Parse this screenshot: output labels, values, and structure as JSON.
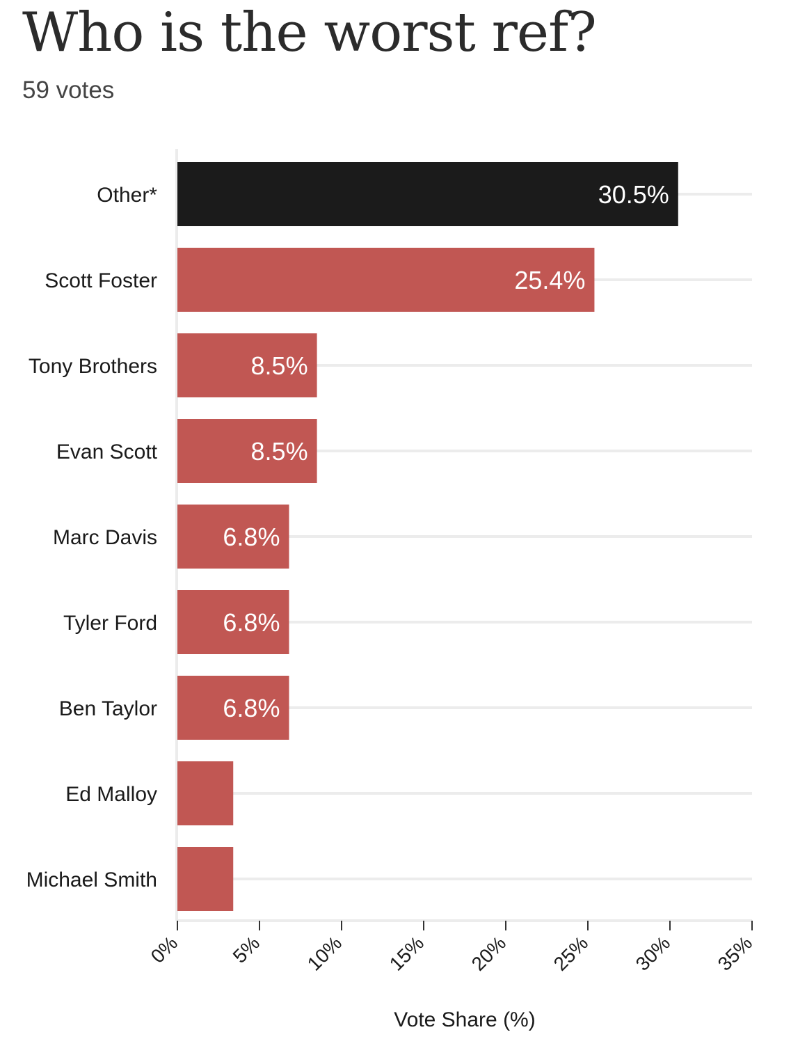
{
  "header": {
    "title": "Who is the worst ref?",
    "subtitle": "59 votes"
  },
  "colors": {
    "highlight": "#1b1b1b",
    "bar": "#c15753",
    "grid": "#ececec",
    "text": "#1a1a1a",
    "label_on_bar": "#ffffff"
  },
  "chart_data": {
    "type": "bar",
    "orientation": "horizontal",
    "title": "Who is the worst ref?",
    "subtitle": "59 votes",
    "categories": [
      "Other*",
      "Scott Foster",
      "Tony Brothers",
      "Evan Scott",
      "Marc Davis",
      "Tyler Ford",
      "Ben Taylor",
      "Ed Malloy",
      "Michael Smith"
    ],
    "values": [
      30.5,
      25.4,
      8.5,
      8.5,
      6.8,
      6.8,
      6.8,
      3.4,
      3.4
    ],
    "data_labels": [
      "30.5%",
      "25.4%",
      "8.5%",
      "8.5%",
      "6.8%",
      "6.8%",
      "6.8%",
      "",
      ""
    ],
    "highlight_index": 0,
    "xlabel": "Vote Share (%)",
    "ylabel": "",
    "xlim": [
      0,
      35
    ],
    "xticks": [
      0,
      5,
      10,
      15,
      20,
      25,
      30,
      35
    ],
    "xtick_labels": [
      "0%",
      "5%",
      "10%",
      "15%",
      "20%",
      "25%",
      "30%",
      "35%"
    ],
    "grid": "horizontal",
    "legend": "none"
  }
}
